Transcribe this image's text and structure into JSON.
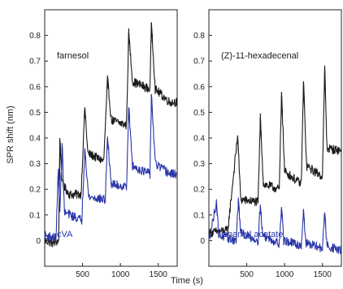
{
  "figure": {
    "ylabel": "SPR shift (nm)",
    "xlabel": "Time (s)"
  },
  "colors": {
    "black_series": "#1a1a1a",
    "blue_series": "#2a36a8",
    "axis": "#222222"
  },
  "chart_data": [
    {
      "type": "line",
      "ylim": [
        -0.1,
        0.9
      ],
      "xlim": [
        0,
        1750
      ],
      "x_ticks": [
        500,
        1000,
        1500
      ],
      "y_ticks": [
        0,
        0.1,
        0.2,
        0.3,
        0.4,
        0.5,
        0.6,
        0.7,
        0.8
      ],
      "y_tick_labels": [
        "0",
        "0.1",
        "0.2",
        "0.3",
        "0.4",
        "0.5",
        "0.6",
        "0.7",
        "0.8"
      ],
      "x_tick_labels": [
        "500",
        "1000",
        "1500"
      ],
      "grid": false,
      "series": [
        {
          "name": "farnesol",
          "color": "#1a1a1a",
          "label_position": "top-left",
          "pulses": [
            200,
            530,
            830,
            1110,
            1410
          ],
          "peaks": [
            0.4,
            0.52,
            0.63,
            0.81,
            0.85
          ],
          "points": [
            [
              0,
              0.0
            ],
            [
              120,
              -0.01
            ],
            [
              185,
              0.0
            ],
            [
              200,
              0.4
            ],
            [
              230,
              0.22
            ],
            [
              330,
              0.18
            ],
            [
              480,
              0.18
            ],
            [
              530,
              0.52
            ],
            [
              570,
              0.34
            ],
            [
              780,
              0.31
            ],
            [
              830,
              0.63
            ],
            [
              880,
              0.47
            ],
            [
              1080,
              0.45
            ],
            [
              1110,
              0.81
            ],
            [
              1160,
              0.62
            ],
            [
              1390,
              0.59
            ],
            [
              1410,
              0.85
            ],
            [
              1460,
              0.59
            ],
            [
              1650,
              0.54
            ]
          ]
        },
        {
          "name": "cVA",
          "color": "#2a36a8",
          "label_position": "bottom-left",
          "pulses": [
            180,
            230,
            530,
            830,
            1110,
            1410
          ],
          "peaks": [
            0.28,
            0.38,
            0.36,
            0.4,
            0.52,
            0.57
          ],
          "points": [
            [
              0,
              0.02
            ],
            [
              150,
              0.01
            ],
            [
              180,
              0.28
            ],
            [
              200,
              0.1
            ],
            [
              230,
              0.38
            ],
            [
              260,
              0.11
            ],
            [
              490,
              0.08
            ],
            [
              530,
              0.36
            ],
            [
              580,
              0.17
            ],
            [
              800,
              0.16
            ],
            [
              830,
              0.4
            ],
            [
              880,
              0.22
            ],
            [
              1080,
              0.21
            ],
            [
              1110,
              0.52
            ],
            [
              1160,
              0.29
            ],
            [
              1390,
              0.26
            ],
            [
              1410,
              0.57
            ],
            [
              1460,
              0.3
            ],
            [
              1650,
              0.26
            ]
          ]
        }
      ],
      "annotations": [
        "farnesol",
        "cVA"
      ]
    },
    {
      "type": "line",
      "ylim": [
        -0.1,
        0.9
      ],
      "xlim": [
        0,
        1750
      ],
      "x_ticks": [
        500,
        1000,
        1500
      ],
      "y_ticks": [
        0,
        0.1,
        0.2,
        0.3,
        0.4,
        0.5,
        0.6,
        0.7,
        0.8
      ],
      "y_tick_labels": [
        "0",
        "0.1",
        "0.2",
        "0.3",
        "0.4",
        "0.5",
        "0.6",
        "0.7",
        "0.8"
      ],
      "x_tick_labels": [
        "500",
        "1000",
        "1500"
      ],
      "grid": false,
      "series": [
        {
          "name": "(Z)-11-hexadecenal",
          "color": "#1a1a1a",
          "label_position": "top-left",
          "pulses": [
            380,
            680,
            960,
            1250,
            1530
          ],
          "peaks": [
            0.41,
            0.48,
            0.58,
            0.62,
            0.67
          ],
          "points": [
            [
              0,
              0.03
            ],
            [
              250,
              0.04
            ],
            [
              380,
              0.41
            ],
            [
              420,
              0.16
            ],
            [
              650,
              0.15
            ],
            [
              680,
              0.48
            ],
            [
              720,
              0.22
            ],
            [
              930,
              0.2
            ],
            [
              960,
              0.58
            ],
            [
              1000,
              0.27
            ],
            [
              1220,
              0.22
            ],
            [
              1250,
              0.62
            ],
            [
              1290,
              0.29
            ],
            [
              1500,
              0.25
            ],
            [
              1530,
              0.67
            ],
            [
              1560,
              0.36
            ],
            [
              1750,
              0.35
            ]
          ]
        },
        {
          "name": "isoamyl acetate",
          "color": "#2a36a8",
          "label_position": "bottom-left",
          "pulses": [
            100,
            390,
            680,
            960,
            1250,
            1530
          ],
          "peaks": [
            0.15,
            0.16,
            0.14,
            0.13,
            0.12,
            0.11
          ],
          "points": [
            [
              0,
              0.0
            ],
            [
              100,
              0.15
            ],
            [
              130,
              0.02
            ],
            [
              360,
              0.0
            ],
            [
              390,
              0.16
            ],
            [
              420,
              0.03
            ],
            [
              650,
              0.0
            ],
            [
              680,
              0.14
            ],
            [
              710,
              0.02
            ],
            [
              930,
              -0.01
            ],
            [
              960,
              0.13
            ],
            [
              990,
              0.0
            ],
            [
              1220,
              -0.02
            ],
            [
              1250,
              0.12
            ],
            [
              1280,
              -0.01
            ],
            [
              1500,
              -0.03
            ],
            [
              1530,
              0.11
            ],
            [
              1560,
              -0.02
            ],
            [
              1750,
              -0.04
            ]
          ]
        }
      ],
      "annotations": [
        "(Z)-11-hexadecenal",
        "isoamyl acetate"
      ]
    }
  ]
}
